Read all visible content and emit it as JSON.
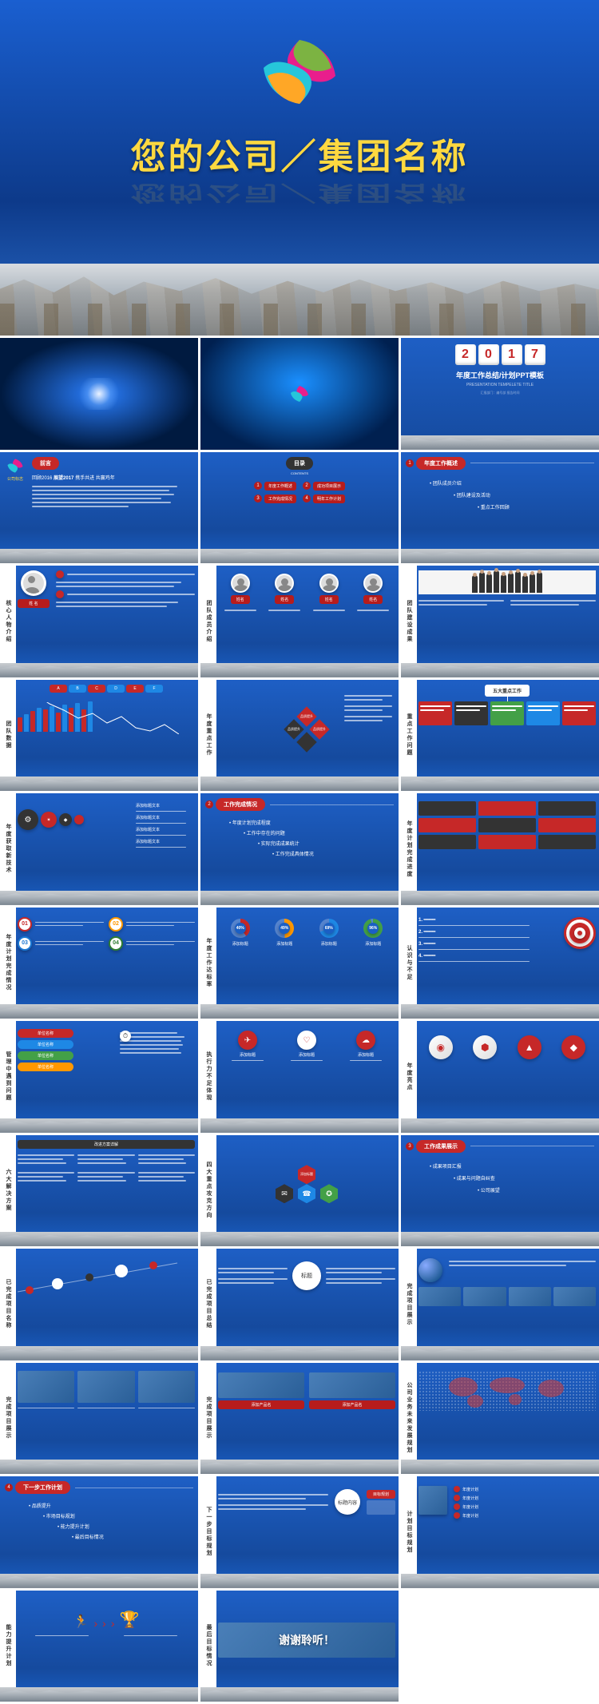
{
  "cover": {
    "title": "您的公司／集团名称",
    "logo_colors": [
      "#e91e8c",
      "#7cb342",
      "#ffa726",
      "#26c6da"
    ]
  },
  "slides": {
    "s3": {
      "digits": [
        "2",
        "0",
        "1",
        "7"
      ],
      "title": "年度工作总结/计划PPT模板",
      "subtitle": "PRESENTATION TEMPELETE TITLE"
    },
    "s4": {
      "badge": "前言",
      "line1": "回顾2016",
      "line2": "展望2017",
      "line3": "携手共进 共赢鸡年",
      "logo_label": "公司标志"
    },
    "s5": {
      "badge": "目录",
      "sub": "CONTENTS",
      "items": [
        "年度工作概述",
        "成功项目展示",
        "工作完成情况",
        "明年工作计划"
      ]
    },
    "s6": {
      "badge": "年度工作概述",
      "items": [
        "团队成员介绍",
        "团队建设及活动",
        "重点工作回顾"
      ]
    },
    "s7": {
      "sidebar": "核心人物介绍",
      "name": "姓 名"
    },
    "s8": {
      "sidebar": "团队成员介绍",
      "names": [
        "姓名",
        "姓名",
        "姓名",
        "姓名"
      ]
    },
    "s9": {
      "sidebar": "团队建设成果"
    },
    "s10": {
      "sidebar": "团队数据"
    },
    "s11": {
      "sidebar": "年度重点工作",
      "labels": [
        "品质提升",
        "品质提升",
        "品质提升"
      ]
    },
    "s12": {
      "sidebar": "重点工作问题",
      "head": "五大重点工作"
    },
    "s13": {
      "sidebar": "年度获取新技术",
      "items": [
        "添加标题文本",
        "添加标题文本",
        "添加标题文本",
        "添加标题文本"
      ]
    },
    "s14": {
      "badge": "工作完成情况",
      "items": [
        "年度计划完成程度",
        "工作中存在的问题",
        "实际完成成果统计",
        "工作完成具体情况"
      ]
    },
    "s15": {
      "sidebar": "年度计划完成进度"
    },
    "s16": {
      "sidebar": "年度计划完成情况",
      "nums": [
        "01",
        "02",
        "03",
        "04"
      ],
      "colors": [
        "#c62828",
        "#ff9800",
        "#1976d2",
        "#2e7d32"
      ]
    },
    "s17": {
      "sidebar": "年度工作达标率",
      "pcts": [
        "40%",
        "49%",
        "69%",
        "96%"
      ],
      "colors": [
        "#c62828",
        "#ff9800",
        "#1e88e5",
        "#43a047"
      ],
      "label": "添加标题"
    },
    "s18": {
      "sidebar": "认识与不足"
    },
    "s19": {
      "sidebar": "管理中遇到问题",
      "tags": [
        "单位名称",
        "单位名称",
        "单位名称",
        "单位名称"
      ],
      "colors": [
        "#c62828",
        "#1e88e5",
        "#43a047",
        "#ff9800"
      ]
    },
    "s20": {
      "sidebar": "执行力不足体现",
      "labels": [
        "添加标题",
        "添加标题",
        "添加标题"
      ]
    },
    "s21": {
      "sidebar": "年度亮点"
    },
    "s22": {
      "sidebar": "六大解决方案",
      "head": "改进方案详解"
    },
    "s23": {
      "sidebar": "四大重点攻克方向",
      "center": "添加标题"
    },
    "s24": {
      "badge": "工作成果展示",
      "items": [
        "成果项目汇报",
        "成果与问题自纠查",
        "公司展望"
      ]
    },
    "s25": {
      "sidebar": "已完成项目名称"
    },
    "s26": {
      "sidebar": "已完成项目总结",
      "center": "标题"
    },
    "s27": {
      "sidebar": "完成项目展示"
    },
    "s28": {
      "sidebar": "完成项目展示",
      "imgs": [
        "A",
        "B",
        "C"
      ]
    },
    "s29": {
      "sidebar": "完成项目展示",
      "labels": [
        "添加产品名",
        "添加产品名"
      ]
    },
    "s30": {
      "sidebar": "公司业务未来发展规划"
    },
    "s31": {
      "badge": "下一步工作计划",
      "items": [
        "品质提升",
        "市场目标规划",
        "能力提升计划",
        "最后目标情况"
      ]
    },
    "s32": {
      "sidebar": "下一步目标规划",
      "center": "标题内容",
      "right": "目标规划"
    },
    "s33": {
      "sidebar": "计划目标规划",
      "items": [
        "年度计划",
        "年度计划",
        "年度计划",
        "年度计划"
      ]
    },
    "s34": {
      "sidebar": "能力提升计划"
    },
    "s35": {
      "sidebar": "最后目标情况",
      "text": "谢谢聆听！"
    }
  },
  "chart": {
    "bars_colors": [
      "#c62828",
      "#1e88e5",
      "#c62828",
      "#1e88e5",
      "#c62828",
      "#1e88e5",
      "#c62828",
      "#1e88e5",
      "#c62828",
      "#1e88e5",
      "#c62828",
      "#1e88e5"
    ],
    "bars_h": [
      18,
      22,
      26,
      30,
      28,
      32,
      24,
      34,
      30,
      36,
      28,
      38
    ],
    "line_points": [
      "0,70",
      "18,58",
      "36,50",
      "54,40",
      "72,46",
      "90,34",
      "108,42",
      "126,28",
      "144,24",
      "162,32",
      "180,20"
    ]
  },
  "colors": {
    "red": "#c62828",
    "dark": "#333333",
    "blue_bg": "#1a5fc5"
  }
}
